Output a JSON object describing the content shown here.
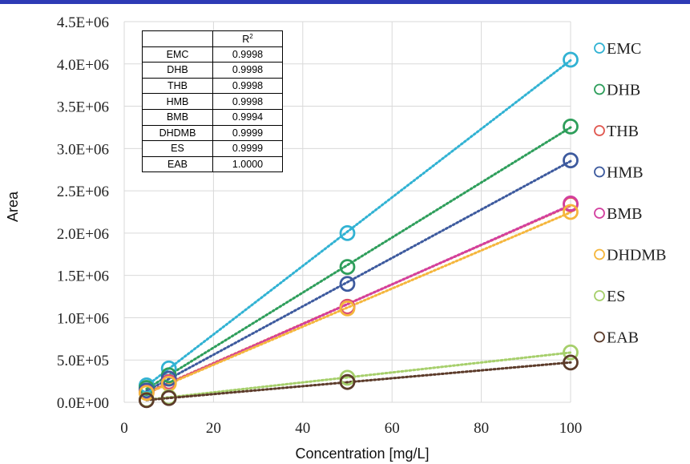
{
  "chart_data": {
    "type": "scatter",
    "xlabel": "Concentration [mg/L]",
    "ylabel": "Area",
    "xlim": [
      0,
      100
    ],
    "ylim": [
      0,
      4500000
    ],
    "x_ticks": [
      "0",
      "20",
      "40",
      "60",
      "80",
      "100"
    ],
    "y_ticks": [
      "0.0E+00",
      "5.0E+05",
      "1.0E+06",
      "1.5E+06",
      "2.0E+06",
      "2.5E+06",
      "3.0E+06",
      "3.5E+06",
      "4.0E+06",
      "4.5E+06"
    ],
    "grid": true,
    "legend_position": "right",
    "x": [
      5,
      10,
      50,
      100
    ],
    "series": [
      {
        "name": "EMC",
        "color": "#31b2d3",
        "values": [
          200000,
          400000,
          2000000,
          4050000
        ]
      },
      {
        "name": "DHB",
        "color": "#2e9e5b",
        "values": [
          170000,
          320000,
          1600000,
          3260000
        ]
      },
      {
        "name": "THB",
        "color": "#e0574f",
        "values": [
          120000,
          240000,
          1130000,
          2340000
        ]
      },
      {
        "name": "HMB",
        "color": "#3d5a9e",
        "values": [
          140000,
          280000,
          1400000,
          2860000
        ]
      },
      {
        "name": "BMB",
        "color": "#d33f9f",
        "values": [
          115000,
          230000,
          1120000,
          2350000
        ]
      },
      {
        "name": "DHDMB",
        "color": "#f5b63c",
        "values": [
          110000,
          220000,
          1110000,
          2250000
        ]
      },
      {
        "name": "ES",
        "color": "#a6cf6b",
        "values": [
          30000,
          60000,
          290000,
          590000
        ]
      },
      {
        "name": "EAB",
        "color": "#5c3b2a",
        "values": [
          25000,
          50000,
          240000,
          470000
        ]
      }
    ],
    "r2_table": {
      "header": [
        "",
        "R2"
      ],
      "rows": [
        [
          "EMC",
          "0.9998"
        ],
        [
          "DHB",
          "0.9998"
        ],
        [
          "THB",
          "0.9998"
        ],
        [
          "HMB",
          "0.9998"
        ],
        [
          "BMB",
          "0.9994"
        ],
        [
          "DHDMB",
          "0.9999"
        ],
        [
          "ES",
          "0.9999"
        ],
        [
          "EAB",
          "1.0000"
        ]
      ]
    }
  }
}
